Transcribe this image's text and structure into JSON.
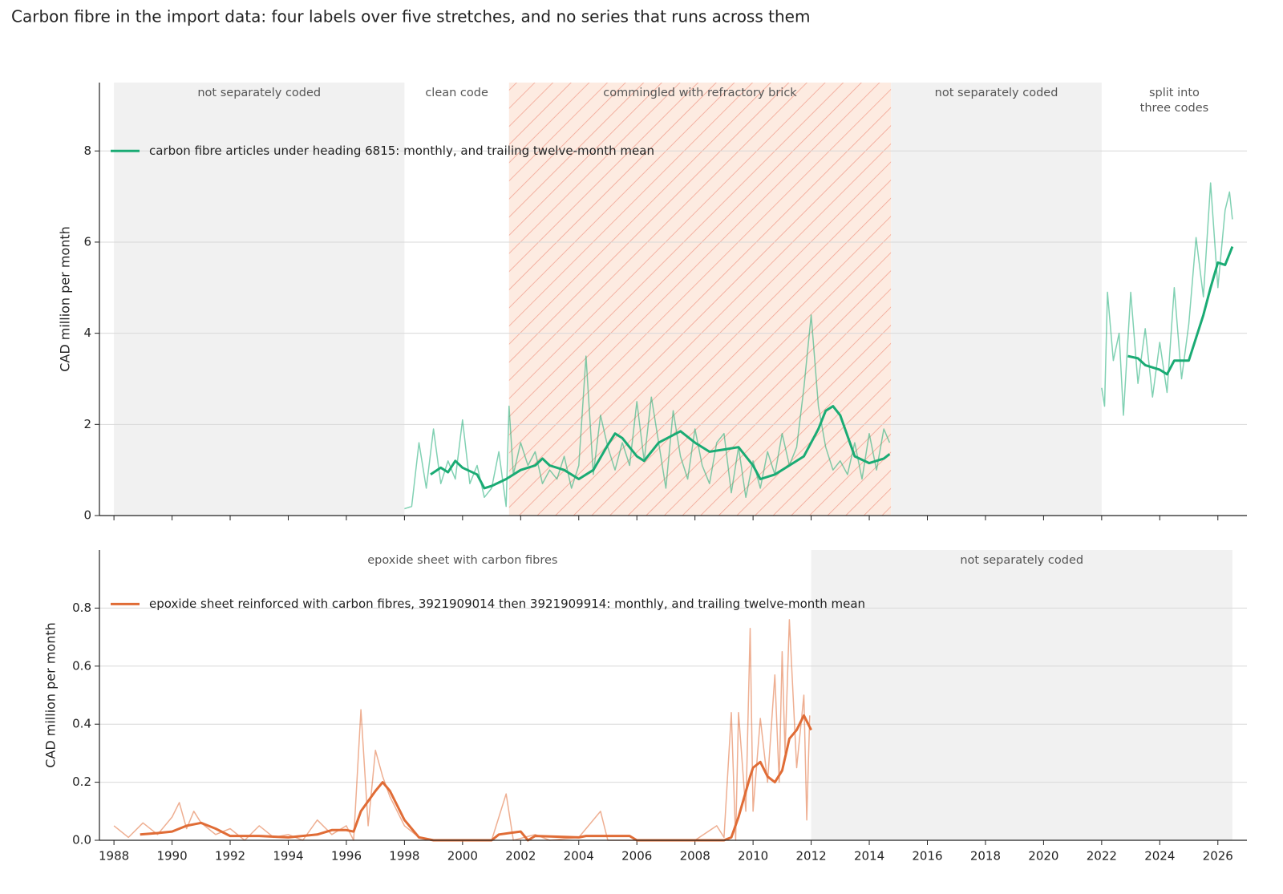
{
  "chart_data": [
    {
      "type": "line",
      "title": "Carbon fibre in the import data: four labels over five stretches, and no series that runs across them",
      "ylabel": "CAD million per month",
      "xlim": [
        1987.5,
        2027
      ],
      "ylim": [
        0,
        9.5
      ],
      "xticks": [
        1988,
        1990,
        1992,
        1994,
        1996,
        1998,
        2000,
        2002,
        2004,
        2006,
        2008,
        2010,
        2012,
        2014,
        2016,
        2018,
        2020,
        2022,
        2024,
        2026
      ],
      "show_xtick_labels": false,
      "yticks": [
        0,
        2,
        4,
        6,
        8
      ],
      "grid": true,
      "regions": [
        {
          "start": 1988,
          "end": 1998,
          "label": "not separately coded",
          "style": "gray"
        },
        {
          "start": 1998,
          "end": 2001.6,
          "label": "clean code",
          "style": "none"
        },
        {
          "start": 2001.6,
          "end": 2014.75,
          "label": "commingled with refractory brick",
          "style": "hatch"
        },
        {
          "start": 2014.75,
          "end": 2022,
          "label": "not separately coded",
          "style": "gray"
        },
        {
          "start": 2022,
          "end": 2027,
          "label": "split into\nthree codes",
          "style": "none"
        }
      ],
      "series": [
        {
          "name": "carbon fibre articles under heading 6815: monthly, and trailing twelve-month mean",
          "color": "#1aab74",
          "monthly": {
            "x": [
              1998.0,
              1998.25,
              1998.5,
              1998.75,
              1999.0,
              1999.25,
              1999.5,
              1999.75,
              2000.0,
              2000.25,
              2000.5,
              2000.75,
              2001.0,
              2001.25,
              2001.5,
              2001.6,
              2001.75,
              2002.0,
              2002.25,
              2002.5,
              2002.75,
              2003.0,
              2003.25,
              2003.5,
              2003.75,
              2004.0,
              2004.25,
              2004.5,
              2004.75,
              2005.0,
              2005.25,
              2005.5,
              2005.75,
              2006.0,
              2006.25,
              2006.5,
              2006.75,
              2007.0,
              2007.25,
              2007.5,
              2007.75,
              2008.0,
              2008.25,
              2008.5,
              2008.75,
              2009.0,
              2009.25,
              2009.5,
              2009.75,
              2010.0,
              2010.25,
              2010.5,
              2010.75,
              2011.0,
              2011.25,
              2011.5,
              2011.75,
              2012.0,
              2012.25,
              2012.5,
              2012.75,
              2013.0,
              2013.25,
              2013.5,
              2013.75,
              2014.0,
              2014.25,
              2014.5,
              2014.7,
              2018,
              2022.0,
              2022.1,
              2022.2,
              2022.4,
              2022.6,
              2022.75,
              2023.0,
              2023.25,
              2023.5,
              2023.75,
              2024.0,
              2024.25,
              2024.5,
              2024.75,
              2025.0,
              2025.25,
              2025.5,
              2025.75,
              2026.0,
              2026.25,
              2026.4,
              2026.5
            ],
            "values": [
              0.15,
              0.2,
              1.6,
              0.6,
              1.9,
              0.7,
              1.2,
              0.8,
              2.1,
              0.7,
              1.1,
              0.4,
              0.6,
              1.4,
              0.2,
              2.4,
              0.9,
              1.6,
              1.1,
              1.4,
              0.7,
              1.0,
              0.8,
              1.3,
              0.6,
              1.1,
              3.5,
              0.9,
              2.2,
              1.5,
              1.0,
              1.6,
              1.1,
              2.5,
              1.2,
              2.6,
              1.6,
              0.6,
              2.3,
              1.3,
              0.8,
              1.9,
              1.1,
              0.7,
              1.6,
              1.8,
              0.5,
              1.5,
              0.4,
              1.2,
              0.6,
              1.4,
              0.9,
              1.8,
              1.1,
              1.5,
              2.8,
              4.4,
              2.4,
              1.5,
              1.0,
              1.2,
              0.9,
              1.6,
              0.8,
              1.8,
              1.0,
              1.9,
              1.6,
              null,
              2.8,
              2.4,
              4.9,
              3.4,
              4.0,
              2.2,
              4.9,
              2.9,
              4.1,
              2.6,
              3.8,
              2.7,
              5.0,
              3.0,
              4.2,
              6.1,
              4.8,
              7.3,
              5.0,
              6.7,
              7.1,
              6.5
            ]
          },
          "mean": {
            "x": [
              1998.9,
              1999.25,
              1999.5,
              1999.75,
              2000.0,
              2000.5,
              2000.75,
              2001.0,
              2001.5,
              2002.0,
              2002.5,
              2002.75,
              2003.0,
              2003.5,
              2004.0,
              2004.5,
              2005.0,
              2005.25,
              2005.5,
              2006.0,
              2006.25,
              2006.75,
              2007.5,
              2008.0,
              2008.5,
              2009.0,
              2009.5,
              2010.0,
              2010.25,
              2010.75,
              2011.25,
              2011.75,
              2012.25,
              2012.5,
              2012.75,
              2013.0,
              2013.5,
              2014.0,
              2014.5,
              2014.7,
              2018,
              2022.9,
              2023.25,
              2023.5,
              2024.0,
              2024.25,
              2024.5,
              2025.0,
              2025.25,
              2025.5,
              2025.75,
              2026.0,
              2026.25,
              2026.5
            ],
            "values": [
              0.9,
              1.05,
              0.95,
              1.2,
              1.05,
              0.9,
              0.6,
              0.65,
              0.8,
              1.0,
              1.1,
              1.25,
              1.1,
              1.0,
              0.8,
              1.0,
              1.55,
              1.8,
              1.7,
              1.3,
              1.2,
              1.6,
              1.85,
              1.6,
              1.4,
              1.45,
              1.5,
              1.1,
              0.8,
              0.9,
              1.1,
              1.3,
              1.9,
              2.3,
              2.4,
              2.2,
              1.3,
              1.15,
              1.25,
              1.35,
              null,
              3.5,
              3.45,
              3.3,
              3.2,
              3.1,
              3.4,
              3.4,
              3.9,
              4.4,
              5.0,
              5.55,
              5.5,
              5.9
            ]
          }
        }
      ]
    },
    {
      "type": "line",
      "ylabel": "CAD million per month",
      "xlim": [
        1987.5,
        2027
      ],
      "ylim": [
        0,
        1.0
      ],
      "xticks": [
        1988,
        1990,
        1992,
        1994,
        1996,
        1998,
        2000,
        2002,
        2004,
        2006,
        2008,
        2010,
        2012,
        2014,
        2016,
        2018,
        2020,
        2022,
        2024,
        2026
      ],
      "show_xtick_labels": true,
      "yticks": [
        {
          "value": 0,
          "label": "0.0"
        },
        0.2,
        0.4,
        0.6,
        0.8
      ],
      "grid": true,
      "regions": [
        {
          "start": 1988,
          "end": 2012,
          "label": "epoxide sheet with carbon fibres",
          "style": "none"
        },
        {
          "start": 2012,
          "end": 2026.5,
          "label": "not separately coded",
          "style": "gray"
        }
      ],
      "series": [
        {
          "name": "epoxide sheet reinforced with carbon fibres, 3921909014 then 3921909914: monthly, and trailing twelve-month mean",
          "color": "#e06c36",
          "monthly": {
            "x": [
              1988.0,
              1988.5,
              1989.0,
              1989.5,
              1990.0,
              1990.25,
              1990.5,
              1990.75,
              1991.0,
              1991.5,
              1992.0,
              1992.5,
              1993.0,
              1993.5,
              1994.0,
              1994.5,
              1995.0,
              1995.5,
              1996.0,
              1996.25,
              1996.5,
              1996.75,
              1997.0,
              1997.25,
              1997.5,
              1998.0,
              1998.5,
              1999.0,
              2000.0,
              2001.0,
              2001.5,
              2001.75,
              2002.5,
              2003.0,
              2004.0,
              2004.75,
              2005.0,
              2006.0,
              2008.0,
              2008.75,
              2009.0,
              2009.25,
              2009.4,
              2009.5,
              2009.75,
              2009.9,
              2010.0,
              2010.25,
              2010.5,
              2010.75,
              2010.9,
              2011.0,
              2011.1,
              2011.25,
              2011.5,
              2011.75,
              2011.85,
              2011.95
            ],
            "values": [
              0.05,
              0.01,
              0.06,
              0.02,
              0.08,
              0.13,
              0.04,
              0.1,
              0.06,
              0.02,
              0.04,
              0.0,
              0.05,
              0.01,
              0.02,
              0.0,
              0.07,
              0.02,
              0.05,
              0.0,
              0.45,
              0.05,
              0.31,
              0.22,
              0.15,
              0.05,
              0.01,
              0.0,
              0.0,
              0.0,
              0.16,
              0.0,
              0.02,
              0.0,
              0.01,
              0.1,
              0.0,
              0.0,
              0.0,
              0.05,
              0.01,
              0.44,
              0.0,
              0.44,
              0.1,
              0.73,
              0.1,
              0.42,
              0.2,
              0.57,
              0.2,
              0.65,
              0.3,
              0.76,
              0.25,
              0.5,
              0.07,
              0.43
            ]
          },
          "mean": {
            "x": [
              1988.9,
              1989.5,
              1990.0,
              1990.5,
              1991.0,
              1991.5,
              1992.0,
              1993.0,
              1994.0,
              1995.0,
              1995.5,
              1996.0,
              1996.25,
              1996.5,
              1997.0,
              1997.25,
              1997.5,
              1998.0,
              1998.5,
              1999.0,
              2001.0,
              2001.25,
              2002.0,
              2002.25,
              2002.5,
              2004.0,
              2004.25,
              2005.75,
              2006.0,
              2009.0,
              2009.25,
              2009.5,
              2009.9,
              2010.0,
              2010.25,
              2010.5,
              2010.75,
              2011.0,
              2011.25,
              2011.5,
              2011.75,
              2012.0
            ],
            "values": [
              0.02,
              0.025,
              0.03,
              0.05,
              0.06,
              0.04,
              0.015,
              0.015,
              0.01,
              0.02,
              0.035,
              0.035,
              0.03,
              0.1,
              0.17,
              0.2,
              0.17,
              0.07,
              0.01,
              0.0,
              0.0,
              0.02,
              0.03,
              0.0,
              0.015,
              0.01,
              0.015,
              0.015,
              0.0,
              0.0,
              0.01,
              0.08,
              0.22,
              0.25,
              0.27,
              0.22,
              0.2,
              0.24,
              0.35,
              0.38,
              0.43,
              0.38
            ]
          }
        }
      ]
    }
  ]
}
